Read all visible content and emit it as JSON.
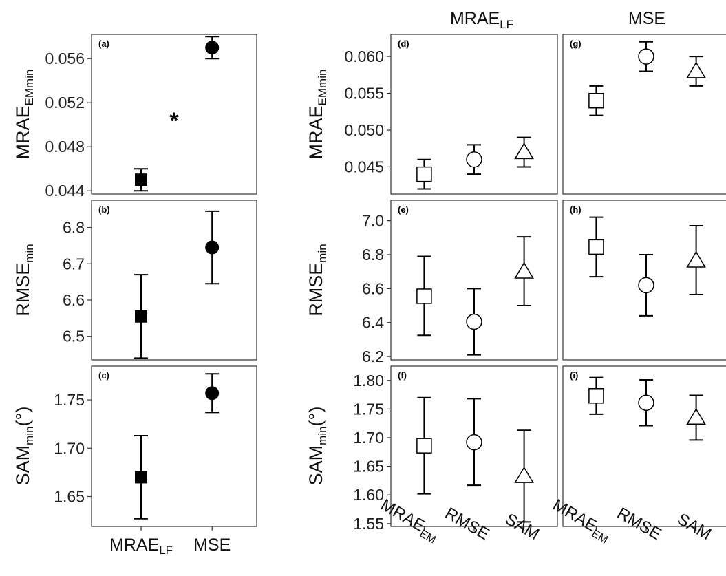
{
  "figure": {
    "column_headers": [
      {
        "main": "MRAE",
        "sub": "LF"
      },
      {
        "main": "MSE",
        "sub": ""
      }
    ],
    "row_labels": [
      {
        "main": "MRAE",
        "sub": "EMmin",
        "suffix": ""
      },
      {
        "main": "RMSE",
        "sub": "min",
        "suffix": ""
      },
      {
        "main": "SAM",
        "sub": "min",
        "suffix": "(°)"
      }
    ],
    "left_x_labels": [
      {
        "main": "MRAE",
        "sub": "LF"
      },
      {
        "main": "MSE",
        "sub": ""
      }
    ],
    "right_x_labels": [
      {
        "main": "MRAE",
        "sub": "EM"
      },
      {
        "main": "RMSE",
        "sub": ""
      },
      {
        "main": "SAM",
        "sub": ""
      }
    ],
    "significance_marker": "*"
  },
  "chart_data": [
    {
      "panel": "(a)",
      "type": "scatter",
      "ylim": [
        0.0437,
        0.0582
      ],
      "yticks": [
        "0.044",
        "0.048",
        "0.052",
        "0.056"
      ],
      "ytick_values": [
        0.044,
        0.048,
        0.052,
        0.056
      ],
      "categories": [
        "MRAE_LF",
        "MSE"
      ],
      "markers": [
        "filled-square",
        "filled-circle"
      ],
      "values": [
        0.045,
        0.057
      ],
      "lower": [
        0.044,
        0.056
      ],
      "upper": [
        0.046,
        0.058
      ],
      "annotation": "*"
    },
    {
      "panel": "(b)",
      "type": "scatter",
      "ylim": [
        6.435,
        6.875
      ],
      "yticks": [
        "6.5",
        "6.6",
        "6.7",
        "6.8"
      ],
      "ytick_values": [
        6.5,
        6.6,
        6.7,
        6.8
      ],
      "categories": [
        "MRAE_LF",
        "MSE"
      ],
      "markers": [
        "filled-square",
        "filled-circle"
      ],
      "values": [
        6.555,
        6.745
      ],
      "lower": [
        6.44,
        6.645
      ],
      "upper": [
        6.67,
        6.845
      ]
    },
    {
      "panel": "(c)",
      "type": "scatter",
      "ylim": [
        1.619,
        1.785
      ],
      "yticks": [
        "1.65",
        "1.70",
        "1.75"
      ],
      "ytick_values": [
        1.65,
        1.7,
        1.75
      ],
      "categories": [
        "MRAE_LF",
        "MSE"
      ],
      "markers": [
        "filled-square",
        "filled-circle"
      ],
      "values": [
        1.67,
        1.757
      ],
      "lower": [
        1.627,
        1.737
      ],
      "upper": [
        1.713,
        1.777
      ]
    },
    {
      "panel": "(d)",
      "type": "scatter",
      "ylim": [
        0.0413,
        0.063
      ],
      "yticks": [
        "0.045",
        "0.050",
        "0.055",
        "0.060"
      ],
      "ytick_values": [
        0.045,
        0.05,
        0.055,
        0.06
      ],
      "categories": [
        "MRAE_EM",
        "RMSE",
        "SAM"
      ],
      "markers": [
        "open-square",
        "open-circle",
        "open-triangle"
      ],
      "values": [
        0.044,
        0.046,
        0.047
      ],
      "lower": [
        0.042,
        0.044,
        0.045
      ],
      "upper": [
        0.046,
        0.048,
        0.049
      ]
    },
    {
      "panel": "(e)",
      "type": "scatter",
      "ylim": [
        6.18,
        7.12
      ],
      "yticks": [
        "6.2",
        "6.4",
        "6.6",
        "6.8",
        "7.0"
      ],
      "ytick_values": [
        6.2,
        6.4,
        6.6,
        6.8,
        7.0
      ],
      "categories": [
        "MRAE_EM",
        "RMSE",
        "SAM"
      ],
      "markers": [
        "open-square",
        "open-circle",
        "open-triangle"
      ],
      "values": [
        6.555,
        6.405,
        6.7
      ],
      "lower": [
        6.325,
        6.21,
        6.5
      ],
      "upper": [
        6.79,
        6.6,
        6.905
      ]
    },
    {
      "panel": "(f)",
      "type": "scatter",
      "ylim": [
        1.545,
        1.825
      ],
      "yticks": [
        "1.55",
        "1.60",
        "1.65",
        "1.70",
        "1.75",
        "1.80"
      ],
      "ytick_values": [
        1.55,
        1.6,
        1.65,
        1.7,
        1.75,
        1.8
      ],
      "categories": [
        "MRAE_EM",
        "RMSE",
        "SAM"
      ],
      "markers": [
        "open-square",
        "open-circle",
        "open-triangle"
      ],
      "values": [
        1.686,
        1.692,
        1.633
      ],
      "lower": [
        1.602,
        1.617,
        1.553
      ],
      "upper": [
        1.77,
        1.768,
        1.713
      ]
    },
    {
      "panel": "(g)",
      "type": "scatter",
      "ylim": [
        0.0413,
        0.063
      ],
      "categories": [
        "MRAE_EM",
        "RMSE",
        "SAM"
      ],
      "markers": [
        "open-square",
        "open-circle",
        "open-triangle"
      ],
      "values": [
        0.054,
        0.06,
        0.058
      ],
      "lower": [
        0.052,
        0.058,
        0.056
      ],
      "upper": [
        0.056,
        0.062,
        0.06
      ]
    },
    {
      "panel": "(h)",
      "type": "scatter",
      "ylim": [
        6.18,
        7.12
      ],
      "categories": [
        "MRAE_EM",
        "RMSE",
        "SAM"
      ],
      "markers": [
        "open-square",
        "open-circle",
        "open-triangle"
      ],
      "values": [
        6.845,
        6.62,
        6.765
      ],
      "lower": [
        6.67,
        6.44,
        6.565
      ],
      "upper": [
        7.02,
        6.8,
        6.97
      ]
    },
    {
      "panel": "(i)",
      "type": "scatter",
      "ylim": [
        1.545,
        1.825
      ],
      "categories": [
        "MRAE_EM",
        "RMSE",
        "SAM"
      ],
      "markers": [
        "open-square",
        "open-circle",
        "open-triangle"
      ],
      "values": [
        1.773,
        1.761,
        1.735
      ],
      "lower": [
        1.741,
        1.721,
        1.696
      ],
      "upper": [
        1.805,
        1.801,
        1.774
      ]
    }
  ]
}
